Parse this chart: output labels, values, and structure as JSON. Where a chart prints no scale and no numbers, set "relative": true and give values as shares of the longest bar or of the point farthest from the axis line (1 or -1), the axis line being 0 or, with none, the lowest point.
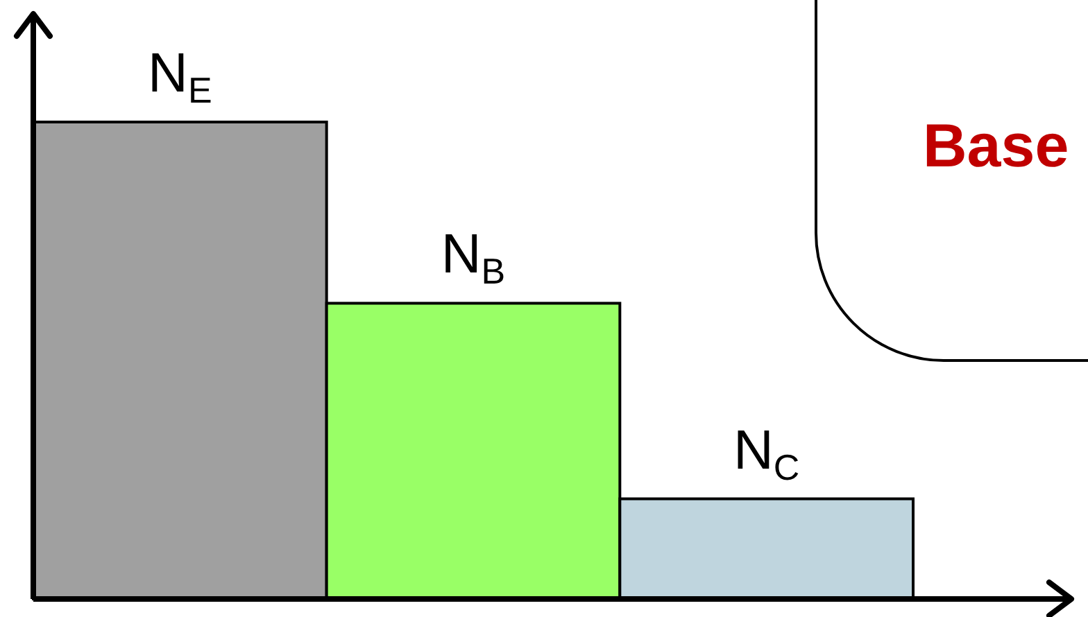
{
  "chart_data": {
    "type": "bar",
    "relative": true,
    "categories": [
      "N$_{E}$",
      "N$_{B}$",
      "N$_{C}$"
    ],
    "values": [
      1,
      0.62,
      0.21
    ],
    "colors": [
      "#a0a0a0",
      "#99ff66",
      "#bfd5de"
    ],
    "annotations": [
      "Base"
    ]
  }
}
